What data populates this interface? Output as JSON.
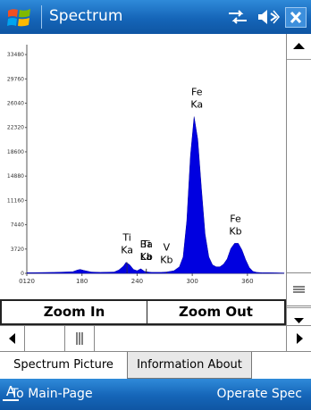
{
  "titlebar": {
    "title": "Spectrum",
    "icons": [
      "windows-logo-icon",
      "connectivity-icon",
      "volume-icon",
      "close-icon"
    ]
  },
  "chart_data": {
    "type": "area",
    "title": "",
    "xlabel": "",
    "ylabel": "",
    "xlim": [
      120,
      400
    ],
    "ylim": [
      0,
      35000
    ],
    "x_ticks": [
      120,
      180,
      240,
      300,
      360
    ],
    "x_tick_labels": [
      "0120",
      "180",
      "240",
      "300",
      "360"
    ],
    "y_ticks": [
      0,
      3720,
      7440,
      11160,
      14880,
      18600,
      22320,
      26040,
      29760,
      33480
    ],
    "y_tick_labels": [
      "0",
      "3720",
      "7440",
      "11160",
      "14880",
      "18600",
      "22320",
      "26040",
      "29760",
      "33480"
    ],
    "color": "#0000e0",
    "x": [
      120,
      150,
      170,
      175,
      178,
      182,
      190,
      200,
      215,
      220,
      225,
      228,
      232,
      236,
      240,
      244,
      248,
      252,
      256,
      260,
      266,
      272,
      280,
      286,
      290,
      294,
      298,
      302,
      306,
      310,
      314,
      318,
      322,
      326,
      330,
      334,
      338,
      342,
      346,
      350,
      354,
      358,
      362,
      366,
      370,
      376,
      382,
      390,
      400
    ],
    "y": [
      100,
      150,
      250,
      500,
      600,
      450,
      200,
      150,
      200,
      500,
      1100,
      1700,
      1300,
      600,
      400,
      700,
      300,
      200,
      150,
      150,
      150,
      200,
      400,
      1000,
      2500,
      8000,
      18000,
      24000,
      20500,
      13000,
      6000,
      2500,
      1300,
      1000,
      1000,
      1400,
      2200,
      3800,
      4600,
      4600,
      3600,
      2100,
      900,
      300,
      150,
      100,
      100,
      80,
      50
    ],
    "annotations": [
      {
        "label": "Ti\nKa",
        "x": 229,
        "y": 1700
      },
      {
        "label": "Ti\nKb",
        "x": 250,
        "y": 700
      },
      {
        "label": "Ba\nLa",
        "x": 250,
        "y": 700
      },
      {
        "label": "V\nKb",
        "x": 272,
        "y": 200
      },
      {
        "label": "Fe\nKa",
        "x": 305,
        "y": 24000
      },
      {
        "label": "Fe\nKb",
        "x": 347,
        "y": 4600
      }
    ]
  },
  "buttons": {
    "zoom_in": "Zoom In",
    "zoom_out": "Zoom Out"
  },
  "tabs": [
    {
      "label": "Spectrum Picture",
      "selected": true
    },
    {
      "label": "Information About",
      "selected": false
    }
  ],
  "softkeys": {
    "left": "To Main-Page",
    "right": "Operate Spec",
    "middle_icon": "keyboard-input-icon"
  }
}
